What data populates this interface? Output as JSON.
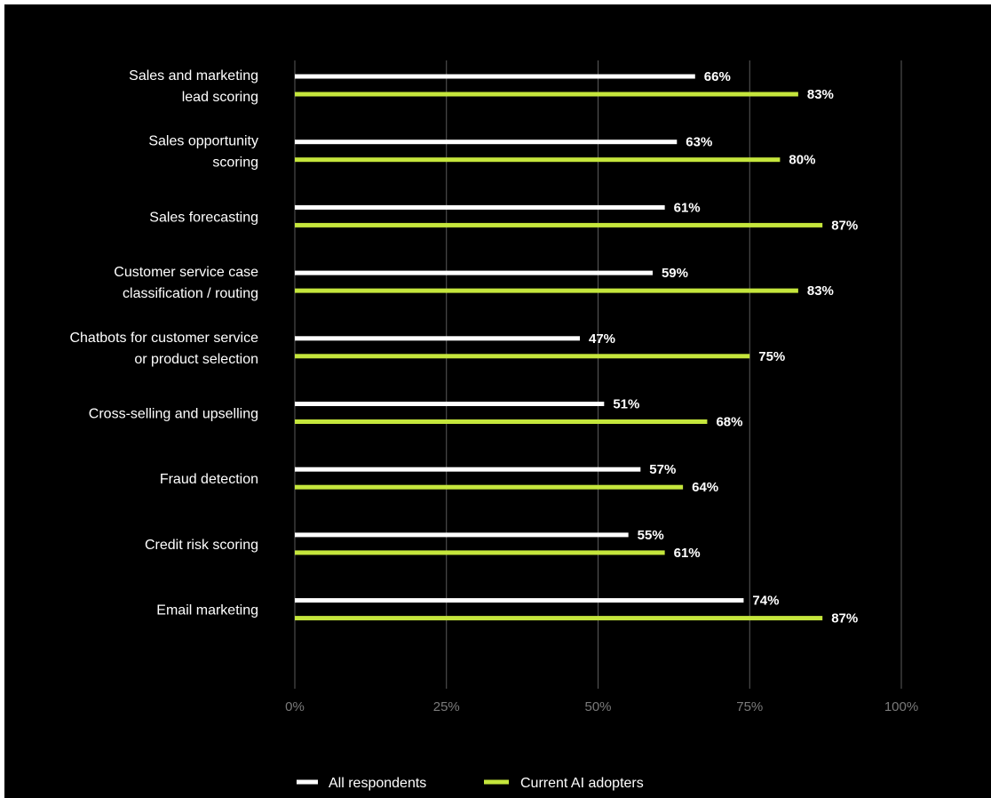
{
  "chart_data": {
    "type": "bar",
    "orientation": "horizontal",
    "title": "",
    "xlabel": "",
    "ylabel": "",
    "xlim": [
      0,
      100
    ],
    "ticks": [
      "0%",
      "25%",
      "50%",
      "75%",
      "100%"
    ],
    "tick_values": [
      0,
      25,
      50,
      75,
      100
    ],
    "grid": true,
    "legend_position": "bottom-center",
    "categories": [
      [
        "Sales and marketing",
        "lead scoring"
      ],
      [
        "Sales opportunity",
        "scoring"
      ],
      [
        "Sales forecasting"
      ],
      [
        "Customer service case",
        "classification / routing"
      ],
      [
        "Chatbots for customer service",
        "or product selection"
      ],
      [
        "Cross-selling and upselling"
      ],
      [
        "Fraud detection"
      ],
      [
        "Credit risk scoring"
      ],
      [
        "Email marketing"
      ]
    ],
    "series": [
      {
        "name": "All respondents",
        "color": "#ffffff",
        "values": [
          66,
          63,
          61,
          59,
          47,
          51,
          57,
          55,
          74
        ],
        "labels": [
          "66%",
          "63%",
          "61%",
          "59%",
          "47%",
          "51%",
          "57%",
          "55%",
          "74%"
        ]
      },
      {
        "name": "Current AI adopters",
        "color": "#c5e63c",
        "values": [
          83,
          80,
          87,
          83,
          75,
          68,
          64,
          61,
          87
        ],
        "labels": [
          "83%",
          "80%",
          "87%",
          "83%",
          "75%",
          "68%",
          "64%",
          "61%",
          "87%"
        ]
      }
    ]
  },
  "colors": {
    "background": "#000000",
    "gridline": "#5a5a5a",
    "tick_text": "#7a7a7a",
    "text": "#ffffff"
  }
}
